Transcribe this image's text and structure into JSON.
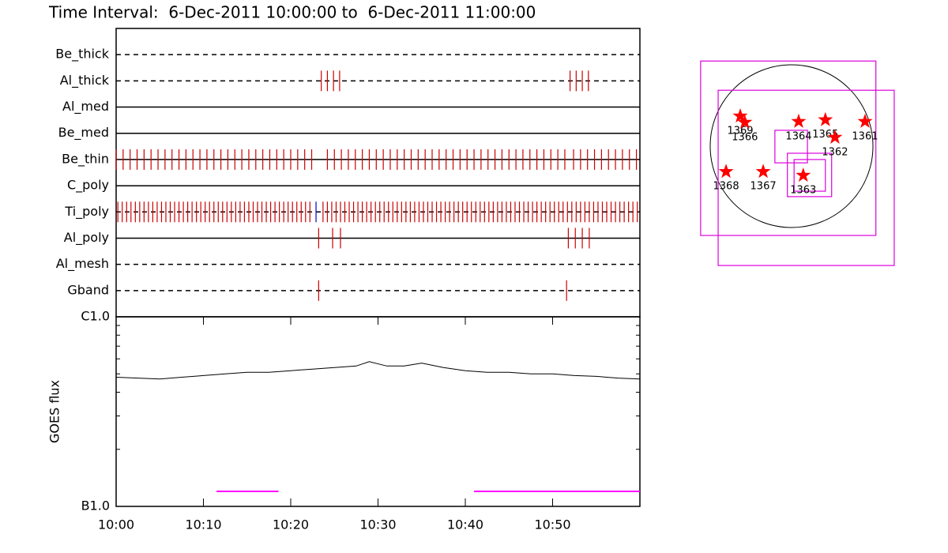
{
  "title": "Time Interval:  6-Dec-2011 10:00:00 to  6-Dec-2011 11:00:00",
  "chart_data": [
    {
      "type": "event",
      "xlim": [
        0,
        60
      ],
      "tick_color": "#cc0000",
      "rows": [
        {
          "name": "Be_thick",
          "line": "dashed",
          "ticks": []
        },
        {
          "name": "Al_thick",
          "line": "dashed",
          "ticks": [
            23.5,
            24.2,
            24.9,
            25.6,
            52.0,
            52.7,
            53.4,
            54.1
          ]
        },
        {
          "name": "Al_med",
          "line": "solid",
          "ticks": []
        },
        {
          "name": "Be_med",
          "line": "solid",
          "ticks": []
        },
        {
          "name": "Be_thin",
          "line": "solid",
          "ticks": [
            0,
            0.8,
            1.6,
            2.4,
            3.2,
            4,
            4.8,
            5.6,
            6.4,
            7.2,
            8,
            8.8,
            9.6,
            10.4,
            11.2,
            12,
            12.8,
            13.6,
            14.4,
            15.2,
            16,
            16.8,
            17.6,
            18.4,
            19.2,
            20,
            20.8,
            21.6,
            22.4,
            24.2,
            25,
            25.8,
            26.6,
            27.4,
            28.2,
            29,
            29.8,
            30.6,
            31.4,
            32.2,
            33,
            33.8,
            34.6,
            35.4,
            36.2,
            37,
            37.8,
            38.6,
            39.4,
            40.2,
            41,
            41.8,
            42.6,
            43.4,
            44.2,
            45,
            45.8,
            46.6,
            47.4,
            48.2,
            49,
            49.8,
            50.6,
            51.4,
            52.4,
            53.2,
            54,
            54.8,
            55.6,
            56.4,
            57.2,
            58,
            58.8,
            59.6
          ]
        },
        {
          "name": "C_poly",
          "line": "solid",
          "ticks": []
        },
        {
          "name": "Ti_poly",
          "line": "dashed",
          "ticks": [
            0.2,
            0.7,
            1.2,
            1.7,
            2.2,
            2.7,
            3.2,
            3.7,
            4.2,
            4.7,
            5.2,
            5.7,
            6.2,
            6.7,
            7.2,
            7.7,
            8.2,
            8.7,
            9.2,
            9.7,
            10.2,
            10.7,
            11.2,
            11.7,
            12.2,
            12.7,
            13.2,
            13.7,
            14.2,
            14.7,
            15.2,
            15.7,
            16.2,
            16.7,
            17.2,
            17.7,
            18.2,
            18.7,
            19.2,
            19.7,
            20.2,
            20.7,
            21.2,
            21.7,
            22.2,
            23.7,
            24.2,
            24.7,
            25.2,
            25.7,
            26.2,
            26.7,
            27.2,
            27.7,
            28.2,
            28.7,
            29.2,
            29.7,
            30.2,
            30.7,
            31.2,
            31.7,
            32.2,
            32.7,
            33.2,
            33.7,
            34.2,
            34.7,
            35.2,
            35.7,
            36.2,
            36.7,
            37.2,
            37.7,
            38.2,
            38.7,
            39.2,
            39.7,
            40.2,
            40.7,
            41.2,
            41.7,
            42.2,
            42.7,
            43.2,
            43.7,
            44.2,
            44.7,
            45.2,
            45.7,
            46.2,
            46.7,
            47.2,
            47.7,
            48.2,
            48.7,
            49.2,
            49.7,
            50.2,
            50.7,
            51.2,
            51.7,
            52.2,
            52.7,
            53.2,
            53.7,
            54.2,
            54.7,
            55.2,
            55.7,
            56.2,
            56.7,
            57.2,
            57.7,
            58.2,
            58.7,
            59.2,
            59.7
          ],
          "alt_ticks": [
            22.9
          ],
          "alt_color": "#0000cc"
        },
        {
          "name": "Al_poly",
          "line": "solid",
          "ticks": [
            23.2,
            24.8,
            25.7,
            51.8,
            52.6,
            53.4,
            54.2
          ]
        },
        {
          "name": "Al_mesh",
          "line": "dashed",
          "ticks": []
        },
        {
          "name": "Gband",
          "line": "dashed",
          "ticks": [
            23.2,
            51.6
          ]
        }
      ]
    },
    {
      "type": "line",
      "ylabel": "GOES flux",
      "log": true,
      "color": "#000000",
      "ylim": [
        1e-07,
        1e-06
      ],
      "yticks": [
        {
          "value": 1e-07,
          "label": "B1.0"
        },
        {
          "value": 1e-06,
          "label": "C1.0"
        }
      ],
      "xlim": [
        0,
        60
      ],
      "xticks": [
        {
          "value": 0,
          "label": "10:00"
        },
        {
          "value": 10,
          "label": "10:10"
        },
        {
          "value": 20,
          "label": "10:20"
        },
        {
          "value": 30,
          "label": "10:30"
        },
        {
          "value": 40,
          "label": "10:40"
        },
        {
          "value": 50,
          "label": "10:50"
        }
      ],
      "x": [
        0,
        2.5,
        5,
        7.5,
        10,
        12.5,
        15,
        17.5,
        20,
        22.5,
        25,
        27.5,
        29,
        31,
        33,
        35,
        37.5,
        40,
        42.5,
        45,
        47.5,
        50,
        52.5,
        55,
        57.5,
        60
      ],
      "values": [
        4.8e-07,
        4.75e-07,
        4.7e-07,
        4.8e-07,
        4.9e-07,
        5e-07,
        5.1e-07,
        5.1e-07,
        5.2e-07,
        5.3e-07,
        5.4e-07,
        5.5e-07,
        5.8e-07,
        5.5e-07,
        5.5e-07,
        5.7e-07,
        5.4e-07,
        5.2e-07,
        5.1e-07,
        5.1e-07,
        5e-07,
        5e-07,
        4.9e-07,
        4.85e-07,
        4.75e-07,
        4.7e-07
      ],
      "segment_color": "#ff00ff",
      "segments": [
        {
          "x": [
            11.5,
            18.6
          ],
          "value": 1.2e-07
        },
        {
          "x": [
            41,
            60
          ],
          "value": 1.2e-07
        }
      ]
    },
    {
      "type": "map",
      "radius": 975,
      "color": "#ff0000",
      "box_color": "#dd00dd",
      "points": [
        {
          "label": "1369",
          "x": -615,
          "y": 360
        },
        {
          "label": "1366",
          "x": -560,
          "y": 285
        },
        {
          "label": "1364",
          "x": 85,
          "y": 295
        },
        {
          "label": "1365",
          "x": 405,
          "y": 315
        },
        {
          "label": "1362",
          "x": 520,
          "y": 105
        },
        {
          "label": "1361",
          "x": 880,
          "y": 295
        },
        {
          "label": "1368",
          "x": -785,
          "y": -305
        },
        {
          "label": "1367",
          "x": -340,
          "y": -305
        },
        {
          "label": "1363",
          "x": 140,
          "y": -350
        }
      ],
      "boxes": [
        {
          "x": [
            -1090,
            1010
          ],
          "y": [
            -1070,
            1020
          ]
        },
        {
          "x": [
            -880,
            1230
          ],
          "y": [
            -1430,
            670
          ]
        },
        {
          "x": [
            -200,
            190
          ],
          "y": [
            -200,
            190
          ]
        },
        {
          "x": [
            -50,
            480
          ],
          "y": [
            -605,
            -85
          ]
        },
        {
          "x": [
            30,
            405
          ],
          "y": [
            -540,
            -160
          ]
        }
      ]
    }
  ]
}
